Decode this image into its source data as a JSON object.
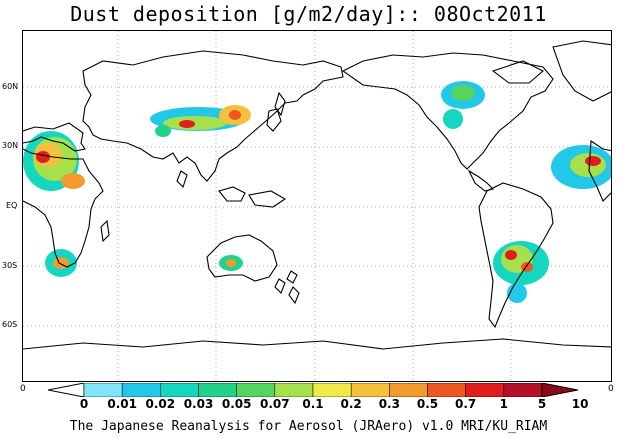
{
  "title": "Dust deposition [g/m2/day]:: 08Oct2011",
  "credit": "The Japanese Reanalysis for Aerosol (JRAero) v1.0 MRI/KU_RIAM",
  "lat_labels": [
    "60N",
    "30N",
    "EQ",
    "30S",
    "60S"
  ],
  "axis_zero_left": "0",
  "axis_zero_right": "0",
  "colorbar": {
    "labels": [
      "0",
      "0.01",
      "0.02",
      "0.03",
      "0.05",
      "0.07",
      "0.1",
      "0.2",
      "0.3",
      "0.5",
      "0.7",
      "1",
      "5",
      "10"
    ],
    "colors": [
      "#ffffff",
      "#7ee6f8",
      "#22c8e8",
      "#15d7c0",
      "#20d28a",
      "#55d460",
      "#a6e04c",
      "#efe94a",
      "#f6c03c",
      "#f39a2e",
      "#f0561f",
      "#e01e1e",
      "#b5102a",
      "#8b0a18"
    ]
  }
}
